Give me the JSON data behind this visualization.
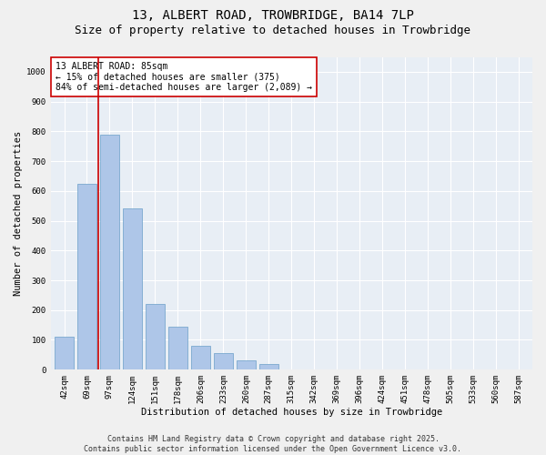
{
  "title_line1": "13, ALBERT ROAD, TROWBRIDGE, BA14 7LP",
  "title_line2": "Size of property relative to detached houses in Trowbridge",
  "xlabel": "Distribution of detached houses by size in Trowbridge",
  "ylabel": "Number of detached properties",
  "categories": [
    "42sqm",
    "69sqm",
    "97sqm",
    "124sqm",
    "151sqm",
    "178sqm",
    "206sqm",
    "233sqm",
    "260sqm",
    "287sqm",
    "315sqm",
    "342sqm",
    "369sqm",
    "396sqm",
    "424sqm",
    "451sqm",
    "478sqm",
    "505sqm",
    "533sqm",
    "560sqm",
    "587sqm"
  ],
  "values": [
    110,
    625,
    790,
    540,
    220,
    145,
    80,
    55,
    30,
    20,
    0,
    0,
    0,
    0,
    0,
    0,
    0,
    0,
    0,
    0,
    0
  ],
  "bar_color": "#aec6e8",
  "bar_edge_color": "#6a9fc8",
  "background_color": "#e8eef5",
  "grid_color": "#ffffff",
  "annotation_line1": "13 ALBERT ROAD: 85sqm",
  "annotation_line2": "← 15% of detached houses are smaller (375)",
  "annotation_line3": "84% of semi-detached houses are larger (2,089) →",
  "red_line_color": "#cc0000",
  "red_line_x": 1.5,
  "ylim": [
    0,
    1050
  ],
  "yticks": [
    0,
    100,
    200,
    300,
    400,
    500,
    600,
    700,
    800,
    900,
    1000
  ],
  "footer_line1": "Contains HM Land Registry data © Crown copyright and database right 2025.",
  "footer_line2": "Contains public sector information licensed under the Open Government Licence v3.0.",
  "title_fontsize": 10,
  "subtitle_fontsize": 9,
  "tick_fontsize": 6.5,
  "axis_label_fontsize": 7.5,
  "annotation_fontsize": 7,
  "footer_fontsize": 6
}
